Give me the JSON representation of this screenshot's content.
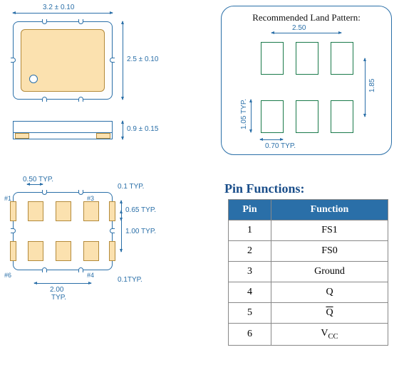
{
  "package": {
    "top_width": "3.2 ± 0.10",
    "top_height": "2.5 ± 0.10",
    "side_height": "0.9 ± 0.15"
  },
  "bottom_view": {
    "pad_width": "0.50  TYP.",
    "edge_pad": "0.1 TYP.",
    "pad_height": "0.65 TYP.",
    "row_pitch": "1.00 TYP.",
    "col_pitch": "2.00",
    "col_pitch_suffix": "TYP.",
    "edge_pad2": "0.1TYP.",
    "pin1": "#1",
    "pin3": "#3",
    "pin4": "#4",
    "pin6": "#6"
  },
  "land_pattern": {
    "title": "Recommended Land Pattern:",
    "col_pitch": "2.50",
    "row_pitch": "1.85",
    "pad_h": "1.05 TYP.",
    "pad_w": "0.70  TYP."
  },
  "table": {
    "title": "Pin Functions:",
    "headers": {
      "col1": "Pin",
      "col2": "Function"
    },
    "rows": [
      {
        "pin": "1",
        "func": "FS1"
      },
      {
        "pin": "2",
        "func": "FS0"
      },
      {
        "pin": "3",
        "func": "Ground"
      },
      {
        "pin": "4",
        "func": "Q"
      },
      {
        "pin": "5",
        "func": "Q",
        "overline": true
      },
      {
        "pin": "6",
        "func": "VCC",
        "subscript_cc": true
      }
    ]
  },
  "colors": {
    "dim": "#2a6fa8",
    "pad_fill": "#fbe1af",
    "pad_border": "#b38a3a",
    "lp_pad_border": "#1a7a4a",
    "table_header": "#2a6fa8"
  }
}
